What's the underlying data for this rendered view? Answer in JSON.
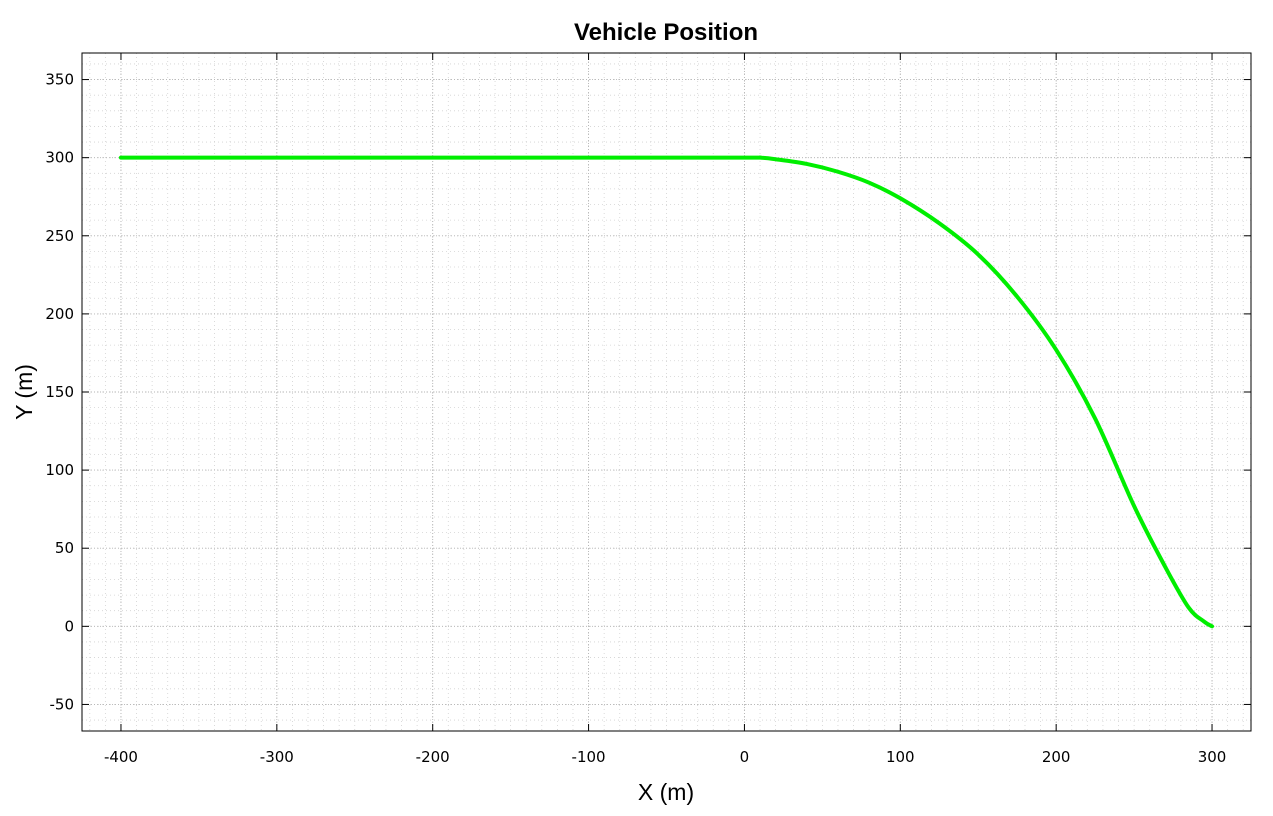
{
  "chart_data": {
    "type": "line",
    "title": "Vehicle Position",
    "xlabel": "X (m)",
    "ylabel": "Y (m)",
    "xlim": [
      -425,
      325
    ],
    "ylim": [
      -67,
      367
    ],
    "xticks": [
      -400,
      -300,
      -200,
      -100,
      0,
      100,
      200,
      300
    ],
    "yticks": [
      -50,
      0,
      50,
      100,
      150,
      200,
      250,
      300,
      350
    ],
    "xtick_labels": [
      "-400",
      "-300",
      "-200",
      "-100",
      "0",
      "100",
      "200",
      "300"
    ],
    "ytick_labels": [
      "-50",
      "0",
      "50",
      "100",
      "150",
      "200",
      "250",
      "300",
      "350"
    ],
    "grid": true,
    "minor_grid": true,
    "series": [
      {
        "color": "#00ee00",
        "x": [
          -400,
          -300,
          -200,
          -100,
          0,
          10,
          20,
          40,
          60,
          80,
          100,
          125,
          150,
          175,
          200,
          225,
          250,
          270,
          285,
          295,
          300
        ],
        "y": [
          300,
          300,
          300,
          300,
          300,
          300,
          299,
          296,
          291,
          284,
          274,
          258,
          238,
          211,
          177,
          133,
          77,
          38,
          12,
          3,
          0
        ]
      }
    ]
  }
}
